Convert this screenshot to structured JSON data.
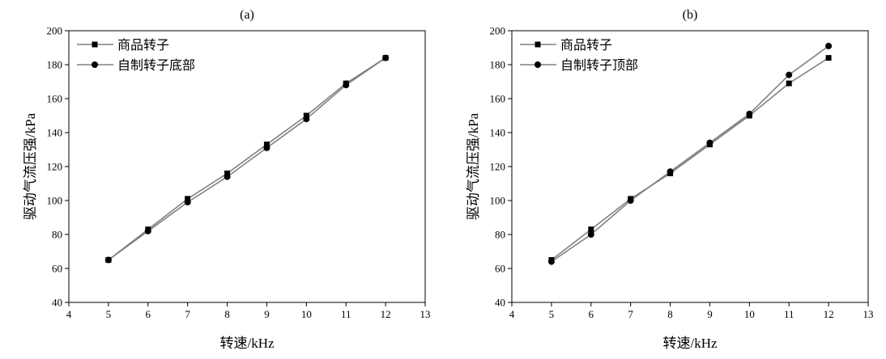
{
  "chart_data": [
    {
      "type": "line",
      "title": "(a)",
      "xlabel": "转速/kHz",
      "ylabel": "驱动气流压强/kPa",
      "xlim": [
        4,
        13
      ],
      "ylim": [
        40,
        200
      ],
      "xticks": [
        4,
        5,
        6,
        7,
        8,
        9,
        10,
        11,
        12,
        13
      ],
      "yticks": [
        40,
        60,
        80,
        100,
        120,
        140,
        160,
        180,
        200
      ],
      "grid": false,
      "legend_position": "top-left",
      "x": [
        5,
        6,
        7,
        8,
        9,
        10,
        11,
        12
      ],
      "series": [
        {
          "name": "商品转子",
          "marker": "square",
          "color": "#808080",
          "values": [
            65,
            83,
            101,
            116,
            133,
            150,
            169,
            184
          ]
        },
        {
          "name": "自制转子底部",
          "marker": "circle",
          "color": "#808080",
          "values": [
            65,
            82,
            99,
            114,
            131,
            148,
            168,
            184
          ]
        }
      ]
    },
    {
      "type": "line",
      "title": "(b)",
      "xlabel": "转速/kHz",
      "ylabel": "驱动气流压强/kPa",
      "xlim": [
        4,
        13
      ],
      "ylim": [
        40,
        200
      ],
      "xticks": [
        4,
        5,
        6,
        7,
        8,
        9,
        10,
        11,
        12,
        13
      ],
      "yticks": [
        40,
        60,
        80,
        100,
        120,
        140,
        160,
        180,
        200
      ],
      "grid": false,
      "legend_position": "top-left",
      "x": [
        5,
        6,
        7,
        8,
        9,
        10,
        11,
        12
      ],
      "series": [
        {
          "name": "商品转子",
          "marker": "square",
          "color": "#808080",
          "values": [
            65,
            83,
            101,
            116,
            133,
            150,
            169,
            184
          ]
        },
        {
          "name": "自制转子顶部",
          "marker": "circle",
          "color": "#808080",
          "values": [
            64,
            80,
            100,
            117,
            134,
            151,
            174,
            191
          ]
        }
      ]
    }
  ]
}
